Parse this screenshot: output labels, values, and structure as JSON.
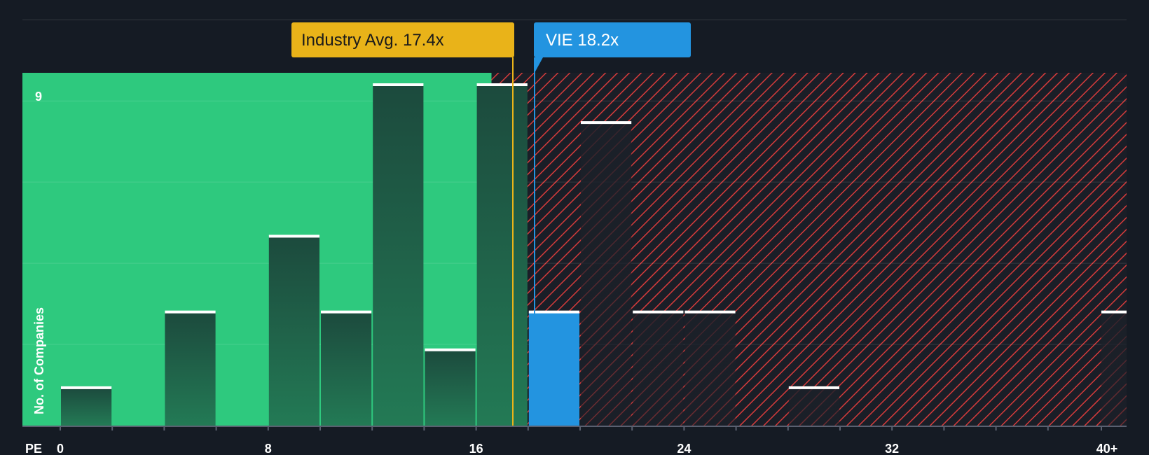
{
  "chart_data": {
    "type": "bar",
    "title": "",
    "xlabel": "PE",
    "ylabel": "No. of Companies",
    "xlim": [
      0,
      40
    ],
    "ylim": [
      0,
      9
    ],
    "x_ticks": [
      "0",
      "8",
      "16",
      "24",
      "32",
      "40+"
    ],
    "y_ticks": [
      "9"
    ],
    "bin_width": 2,
    "bins": [
      {
        "start": 0,
        "value": 1
      },
      {
        "start": 4,
        "value": 3
      },
      {
        "start": 8,
        "value": 5
      },
      {
        "start": 10,
        "value": 3
      },
      {
        "start": 12,
        "value": 9
      },
      {
        "start": 14,
        "value": 2
      },
      {
        "start": 16,
        "value": 9
      },
      {
        "start": 18,
        "value": 3,
        "highlight": true
      },
      {
        "start": 20,
        "value": 8
      },
      {
        "start": 22,
        "value": 3
      },
      {
        "start": 24,
        "value": 3
      },
      {
        "start": 28,
        "value": 1
      },
      {
        "start": 40,
        "value": 3
      }
    ],
    "fair_value_boundary": 17.4,
    "industry_avg": {
      "label": "Industry Avg. 17.4x",
      "value": 17.4,
      "color": "#e9b319"
    },
    "company": {
      "label": "VIE 18.2x",
      "value": 18.2,
      "color": "#2394e0"
    },
    "colors": {
      "background": "#151b24",
      "green_zone": "#2ec97e",
      "red_hatch": "#d63b3b",
      "bar_dark": "#1e4d40",
      "bar_edge": "#ffffff"
    }
  }
}
